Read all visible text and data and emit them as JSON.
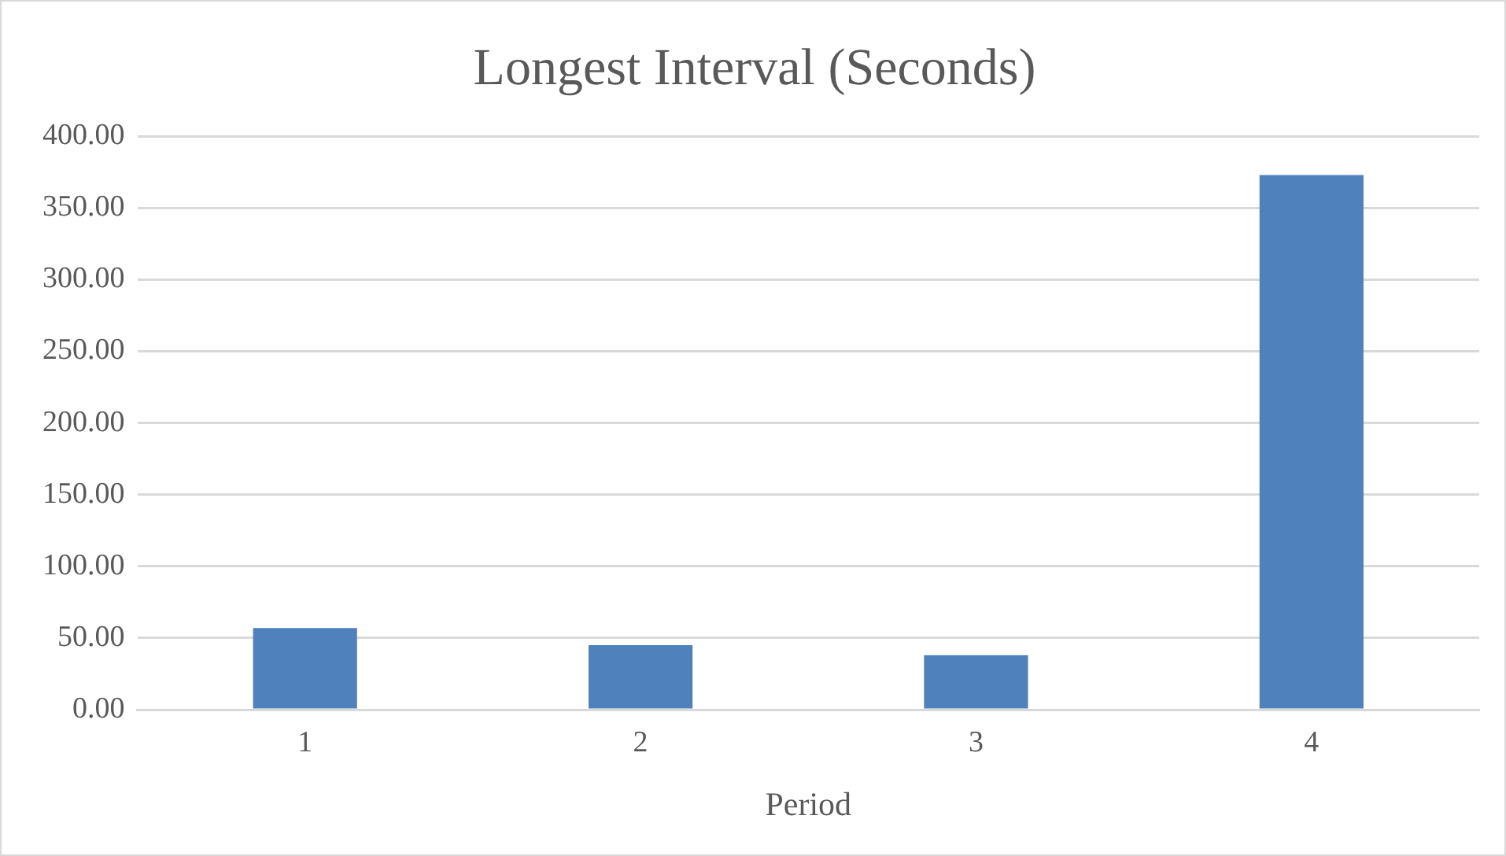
{
  "chart_data": {
    "type": "bar",
    "title": "Longest Interval (Seconds)",
    "xlabel": "Period",
    "categories": [
      "1",
      "2",
      "3",
      "4"
    ],
    "series": [
      {
        "color": "#4f81bd",
        "values": [
          57,
          45,
          38,
          373
        ]
      }
    ],
    "ylim": [
      0,
      400
    ],
    "yticks": [
      {
        "value": 0,
        "label": "0.00"
      },
      {
        "value": 50,
        "label": "50.00"
      },
      {
        "value": 100,
        "label": "100.00"
      },
      {
        "value": 150,
        "label": "150.00"
      },
      {
        "value": 200,
        "label": "200.00"
      },
      {
        "value": 250,
        "label": "250.00"
      },
      {
        "value": 300,
        "label": "300.00"
      },
      {
        "value": 350,
        "label": "350.00"
      },
      {
        "value": 400,
        "label": "400.00"
      }
    ],
    "grid": "y",
    "legend": false
  }
}
